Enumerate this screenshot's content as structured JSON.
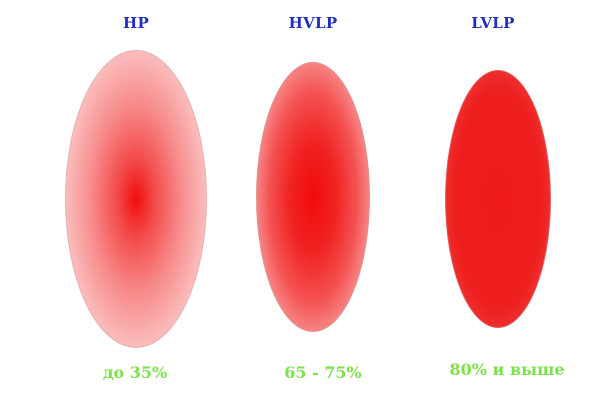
{
  "columns": [
    {
      "title": "HP",
      "value": "до 35%"
    },
    {
      "title": "HVLP",
      "value": "65 - 75%"
    },
    {
      "title": "LVLP",
      "value": "80% и выше"
    }
  ],
  "colors": {
    "title": "#1f2fc0",
    "value": "#7ee04a",
    "spray": "#f20d0d"
  }
}
